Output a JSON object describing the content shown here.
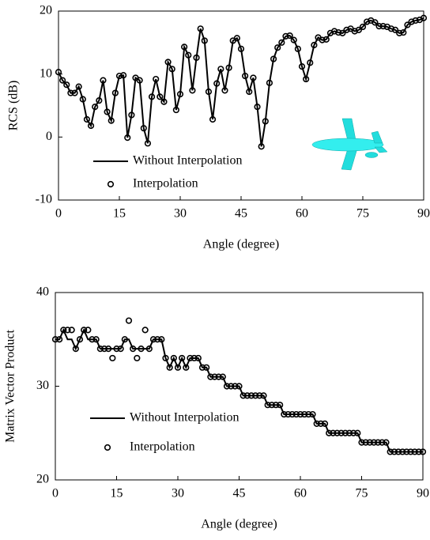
{
  "chart_data": [
    {
      "type": "line",
      "x_label": "Angle (degree)",
      "y_label": "RCS (dB)",
      "x": [
        0,
        1,
        2,
        3,
        4,
        5,
        6,
        7,
        8,
        9,
        10,
        11,
        12,
        13,
        14,
        15,
        16,
        17,
        18,
        19,
        20,
        21,
        22,
        23,
        24,
        25,
        26,
        27,
        28,
        29,
        30,
        31,
        32,
        33,
        34,
        35,
        36,
        37,
        38,
        39,
        40,
        41,
        42,
        43,
        44,
        45,
        46,
        47,
        48,
        49,
        50,
        51,
        52,
        53,
        54,
        55,
        56,
        57,
        58,
        59,
        60,
        61,
        62,
        63,
        64,
        65,
        66,
        67,
        68,
        69,
        70,
        71,
        72,
        73,
        74,
        75,
        76,
        77,
        78,
        79,
        80,
        81,
        82,
        83,
        84,
        85,
        86,
        87,
        88,
        89,
        90
      ],
      "series": [
        {
          "name": "Without Interpolation",
          "color": "#000000",
          "style": "line",
          "values": [
            10.3,
            9,
            8.3,
            7,
            7,
            8,
            6,
            2.8,
            1.8,
            4.8,
            5.8,
            9,
            4,
            2.6,
            7,
            9.7,
            9.8,
            -0.1,
            3.5,
            9.4,
            9,
            1.4,
            -1,
            6.4,
            9.2,
            6.4,
            5.6,
            11.9,
            10.8,
            4.3,
            6.8,
            14.3,
            13,
            7.4,
            12.6,
            17.2,
            15.3,
            7.2,
            2.8,
            8.5,
            10.8,
            7.4,
            11,
            15.3,
            15.7,
            14,
            9.7,
            7.2,
            9.4,
            4.8,
            -1.5,
            2.5,
            8.6,
            12.4,
            14.2,
            15,
            16,
            16.1,
            15.4,
            14,
            11.2,
            9.2,
            11.8,
            14.6,
            15.8,
            15.4,
            15.5,
            16.5,
            16.8,
            16.6,
            16.5,
            17,
            17.2,
            16.8,
            17,
            17.5,
            18.3,
            18.5,
            18.2,
            17.6,
            17.6,
            17.5,
            17.2,
            17,
            16.5,
            16.6,
            17.8,
            18.3,
            18.5,
            18.6,
            18.9
          ]
        },
        {
          "name": "Interpolation",
          "color": "#000000",
          "style": "marker",
          "values": [
            10.3,
            9,
            8.3,
            7,
            7,
            8,
            6,
            2.8,
            1.8,
            4.8,
            5.8,
            9,
            4,
            2.6,
            7,
            9.7,
            9.8,
            -0.1,
            3.5,
            9.4,
            9,
            1.4,
            -1,
            6.4,
            9.2,
            6.4,
            5.6,
            11.9,
            10.8,
            4.3,
            6.8,
            14.3,
            13,
            7.4,
            12.6,
            17.2,
            15.3,
            7.2,
            2.8,
            8.5,
            10.8,
            7.4,
            11,
            15.3,
            15.7,
            14,
            9.7,
            7.2,
            9.4,
            4.8,
            -1.5,
            2.5,
            8.6,
            12.4,
            14.2,
            15,
            16,
            16.1,
            15.4,
            14,
            11.2,
            9.2,
            11.8,
            14.6,
            15.8,
            15.4,
            15.5,
            16.5,
            16.8,
            16.6,
            16.5,
            17,
            17.2,
            16.8,
            17,
            17.5,
            18.3,
            18.5,
            18.2,
            17.6,
            17.6,
            17.5,
            17.2,
            17,
            16.5,
            16.6,
            17.8,
            18.3,
            18.5,
            18.6,
            18.9
          ]
        }
      ],
      "xlim": [
        0,
        90
      ],
      "xticks": [
        0,
        15,
        30,
        45,
        60,
        75,
        90
      ],
      "ylim": [
        -10,
        20
      ],
      "yticks": [
        -10,
        0,
        10,
        20
      ],
      "grid": false,
      "legend": "lower left"
    },
    {
      "type": "line",
      "x_label": "Angle (degree)",
      "y_label": "Matrix Vector Product",
      "x": [
        0,
        1,
        2,
        3,
        4,
        5,
        6,
        7,
        8,
        9,
        10,
        11,
        12,
        13,
        14,
        15,
        16,
        17,
        18,
        19,
        20,
        21,
        22,
        23,
        24,
        25,
        26,
        27,
        28,
        29,
        30,
        31,
        32,
        33,
        34,
        35,
        36,
        37,
        38,
        39,
        40,
        41,
        42,
        43,
        44,
        45,
        46,
        47,
        48,
        49,
        50,
        51,
        52,
        53,
        54,
        55,
        56,
        57,
        58,
        59,
        60,
        61,
        62,
        63,
        64,
        65,
        66,
        67,
        68,
        69,
        70,
        71,
        72,
        73,
        74,
        75,
        76,
        77,
        78,
        79,
        80,
        81,
        82,
        83,
        84,
        85,
        86,
        87,
        88,
        89,
        90
      ],
      "series": [
        {
          "name": "Without Interpolation",
          "color": "#000000",
          "style": "line",
          "values": [
            35,
            35,
            36,
            35,
            35,
            34,
            35,
            36,
            35,
            35,
            35,
            34,
            34,
            34,
            34,
            34,
            34,
            35,
            35,
            34,
            34,
            34,
            34,
            34,
            35,
            35,
            35,
            33,
            32,
            33,
            32,
            33,
            32,
            33,
            33,
            33,
            32,
            32,
            31,
            31,
            31,
            31,
            30,
            30,
            30,
            30,
            29,
            29,
            29,
            29,
            29,
            29,
            28,
            28,
            28,
            28,
            27,
            27,
            27,
            27,
            27,
            27,
            27,
            27,
            26,
            26,
            26,
            25,
            25,
            25,
            25,
            25,
            25,
            25,
            25,
            24,
            24,
            24,
            24,
            24,
            24,
            24,
            23,
            23,
            23,
            23,
            23,
            23,
            23,
            23,
            23
          ]
        },
        {
          "name": "Interpolation",
          "color": "#000000",
          "style": "marker",
          "values": [
            35,
            35,
            36,
            36,
            36,
            34,
            35,
            36,
            36,
            35,
            35,
            34,
            34,
            34,
            33,
            34,
            34,
            35,
            37,
            34,
            33,
            34,
            36,
            34,
            35,
            35,
            35,
            33,
            32,
            33,
            32,
            33,
            32,
            33,
            33,
            33,
            32,
            32,
            31,
            31,
            31,
            31,
            30,
            30,
            30,
            30,
            29,
            29,
            29,
            29,
            29,
            29,
            28,
            28,
            28,
            28,
            27,
            27,
            27,
            27,
            27,
            27,
            27,
            27,
            26,
            26,
            26,
            25,
            25,
            25,
            25,
            25,
            25,
            25,
            25,
            24,
            24,
            24,
            24,
            24,
            24,
            24,
            23,
            23,
            23,
            23,
            23,
            23,
            23,
            23,
            23
          ]
        }
      ],
      "xlim": [
        0,
        90
      ],
      "xticks": [
        0,
        15,
        30,
        45,
        60,
        75,
        90
      ],
      "ylim": [
        20,
        40
      ],
      "yticks": [
        20,
        30,
        40
      ],
      "grid": false,
      "legend": "lower left"
    }
  ]
}
